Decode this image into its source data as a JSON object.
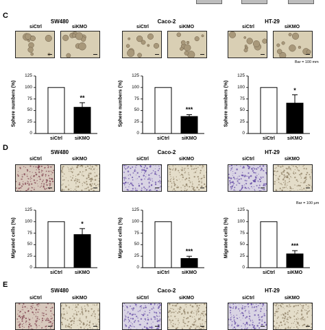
{
  "panels": [
    {
      "letter": "C",
      "scale_note": "Bar = 100 mm",
      "ylabel": "Sphere numbers (%)",
      "kind": "sphere",
      "groups": [
        {
          "cell_line": "SW480",
          "ctrl_label": "siCtrl",
          "kd_label": "siKMO",
          "values": {
            "siCtrl": 100,
            "siKMO": 57
          },
          "error": {
            "siKMO": 10
          },
          "sig": "**"
        },
        {
          "cell_line": "Caco-2",
          "ctrl_label": "siCtrl",
          "kd_label": "siKMO",
          "values": {
            "siCtrl": 100,
            "siKMO": 37
          },
          "error": {
            "siKMO": 4
          },
          "sig": "***"
        },
        {
          "cell_line": "HT-29",
          "ctrl_label": "siCtrl",
          "kd_label": "siKMO",
          "values": {
            "siCtrl": 100,
            "siKMO": 66
          },
          "error": {
            "siKMO": 18
          },
          "sig": "*"
        }
      ]
    },
    {
      "letter": "D",
      "scale_note": "Bar = 100 µm",
      "ylabel": "Migrated cells (%)",
      "kind": "migration",
      "groups": [
        {
          "cell_line": "SW480",
          "ctrl_label": "siCtrl",
          "kd_label": "siKMO",
          "values": {
            "siCtrl": 100,
            "siKMO": 72
          },
          "error": {
            "siKMO": 13
          },
          "sig": "*"
        },
        {
          "cell_line": "Caco-2",
          "ctrl_label": "siCtrl",
          "kd_label": "siKMO",
          "values": {
            "siCtrl": 100,
            "siKMO": 20
          },
          "error": {
            "siKMO": 5
          },
          "sig": "***"
        },
        {
          "cell_line": "HT-29",
          "ctrl_label": "siCtrl",
          "kd_label": "siKMO",
          "values": {
            "siCtrl": 100,
            "siKMO": 30
          },
          "error": {
            "siKMO": 7
          },
          "sig": "***"
        }
      ]
    },
    {
      "letter": "E",
      "groups": [
        {
          "cell_line": "SW480",
          "ctrl_label": "siCtrl",
          "kd_label": "siKMO"
        },
        {
          "cell_line": "Caco-2",
          "ctrl_label": "siCtrl",
          "kd_label": "siKMO"
        },
        {
          "cell_line": "HT-29",
          "ctrl_label": "siCtrl",
          "kd_label": "siKMO"
        }
      ]
    }
  ],
  "chart_data": [
    {
      "type": "bar",
      "title": "SW480",
      "categories": [
        "siCtrl",
        "siKMO"
      ],
      "values": [
        100,
        57
      ],
      "errors": [
        0,
        10
      ],
      "ylabel": "Sphere numbers (%)",
      "ylim": [
        0,
        125
      ],
      "yticks": [
        0,
        25,
        50,
        75,
        100,
        125
      ],
      "significance": "**"
    },
    {
      "type": "bar",
      "title": "Caco-2",
      "categories": [
        "siCtrl",
        "siKMO"
      ],
      "values": [
        100,
        37
      ],
      "errors": [
        0,
        4
      ],
      "ylabel": "Sphere numbers (%)",
      "ylim": [
        0,
        125
      ],
      "yticks": [
        0,
        25,
        50,
        75,
        100,
        125
      ],
      "significance": "***"
    },
    {
      "type": "bar",
      "title": "HT-29",
      "categories": [
        "siCtrl",
        "siKMO"
      ],
      "values": [
        100,
        66
      ],
      "errors": [
        0,
        18
      ],
      "ylabel": "Sphere numbers (%)",
      "ylim": [
        0,
        125
      ],
      "yticks": [
        0,
        25,
        50,
        75,
        100,
        125
      ],
      "significance": "*"
    },
    {
      "type": "bar",
      "title": "SW480",
      "categories": [
        "siCtrl",
        "siKMO"
      ],
      "values": [
        100,
        72
      ],
      "errors": [
        0,
        13
      ],
      "ylabel": "Migrated cells (%)",
      "ylim": [
        0,
        125
      ],
      "yticks": [
        0,
        25,
        50,
        75,
        100,
        125
      ],
      "significance": "*"
    },
    {
      "type": "bar",
      "title": "Caco-2",
      "categories": [
        "siCtrl",
        "siKMO"
      ],
      "values": [
        100,
        20
      ],
      "errors": [
        0,
        5
      ],
      "ylabel": "Migrated cells (%)",
      "ylim": [
        0,
        125
      ],
      "yticks": [
        0,
        25,
        50,
        75,
        100,
        125
      ],
      "significance": "***"
    },
    {
      "type": "bar",
      "title": "HT-29",
      "categories": [
        "siCtrl",
        "siKMO"
      ],
      "values": [
        100,
        30
      ],
      "errors": [
        0,
        7
      ],
      "ylabel": "Migrated cells (%)",
      "ylim": [
        0,
        125
      ],
      "yticks": [
        0,
        25,
        50,
        75,
        100,
        125
      ],
      "significance": "***"
    }
  ]
}
